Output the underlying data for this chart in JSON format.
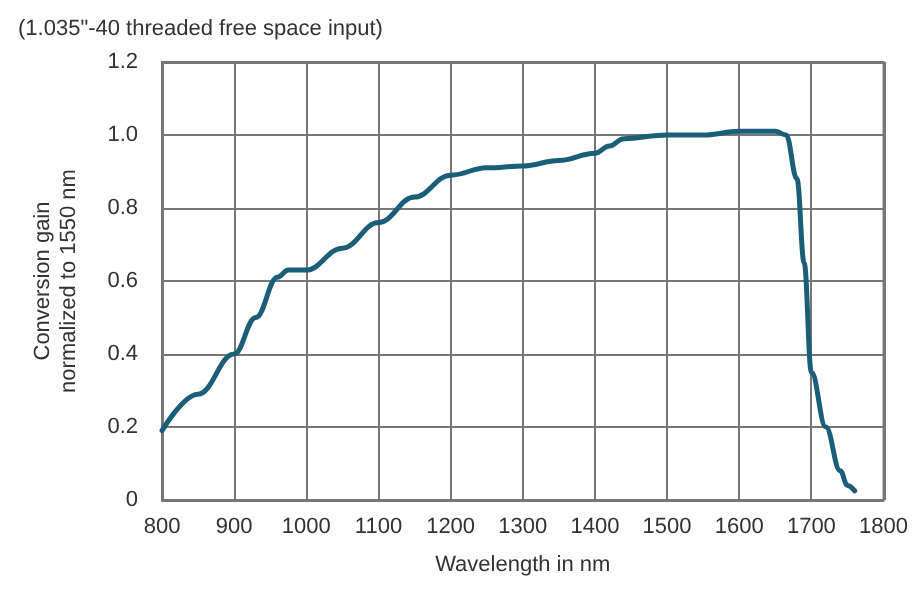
{
  "chart_data": {
    "type": "line",
    "title": "(1.035\"-40 threaded free space input)",
    "xlabel": "Wavelength in nm",
    "ylabel": "Conversion gain\nnormalized to 1550 nm",
    "x": [
      800,
      850,
      900,
      930,
      960,
      975,
      1000,
      1050,
      1100,
      1150,
      1200,
      1250,
      1300,
      1350,
      1400,
      1420,
      1440,
      1500,
      1550,
      1600,
      1650,
      1665,
      1680,
      1690,
      1700,
      1720,
      1740,
      1750,
      1760
    ],
    "series": [
      {
        "color": "#1b5e78",
        "values": [
          0.19,
          0.29,
          0.4,
          0.5,
          0.61,
          0.63,
          0.63,
          0.69,
          0.76,
          0.83,
          0.89,
          0.91,
          0.915,
          0.93,
          0.95,
          0.97,
          0.99,
          1.0,
          1.0,
          1.01,
          1.01,
          1.0,
          0.88,
          0.65,
          0.35,
          0.2,
          0.08,
          0.04,
          0.025
        ]
      }
    ],
    "xlim": [
      800,
      1800
    ],
    "xticks": [
      800,
      900,
      1000,
      1100,
      1200,
      1300,
      1400,
      1500,
      1600,
      1700,
      1800
    ],
    "ylim": [
      0,
      1.2
    ],
    "yticks": [
      0,
      {
        "value": 0.2,
        "label": "0.2"
      },
      {
        "value": 0.4,
        "label": "0.4"
      },
      {
        "value": 0.6,
        "label": "0.6"
      },
      {
        "value": 0.8,
        "label": "0.8"
      },
      {
        "value": 1,
        "label": "1.0"
      },
      {
        "value": 1.2,
        "label": "1.2"
      }
    ],
    "grid": true,
    "marker": "none",
    "line_style": "solid"
  }
}
